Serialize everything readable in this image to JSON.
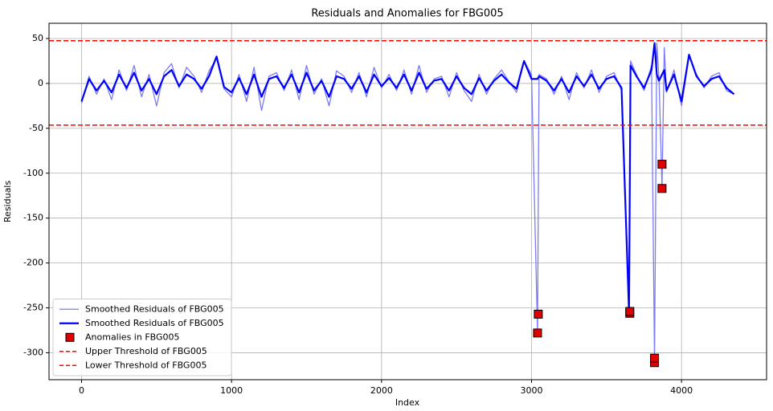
{
  "chart_data": {
    "type": "line",
    "title": "Residuals and Anomalies for FBG005",
    "x_label": "Index",
    "y_label": "Residuals",
    "x": [
      0,
      50,
      100,
      150,
      200,
      250,
      300,
      350,
      400,
      450,
      500,
      550,
      600,
      650,
      700,
      750,
      800,
      850,
      900,
      950,
      1000,
      1050,
      1100,
      1150,
      1200,
      1250,
      1300,
      1350,
      1400,
      1450,
      1500,
      1550,
      1600,
      1650,
      1700,
      1750,
      1800,
      1850,
      1900,
      1950,
      2000,
      2050,
      2100,
      2150,
      2200,
      2250,
      2300,
      2350,
      2400,
      2450,
      2500,
      2550,
      2600,
      2650,
      2700,
      2750,
      2800,
      2850,
      2900,
      2950,
      3000,
      3040,
      3050,
      3100,
      3150,
      3200,
      3250,
      3300,
      3350,
      3400,
      3450,
      3500,
      3550,
      3600,
      3650,
      3660,
      3700,
      3750,
      3800,
      3820,
      3835,
      3850,
      3870,
      3885,
      3900,
      3950,
      4000,
      4050,
      4100,
      4150,
      4200,
      4250,
      4300,
      4350
    ],
    "series": [
      {
        "name": "Smoothed Residuals of FBG005",
        "color": "#7b7bf5",
        "width": 1.3,
        "values": [
          -22,
          8,
          -12,
          5,
          -18,
          15,
          -8,
          20,
          -15,
          10,
          -25,
          12,
          22,
          -5,
          18,
          8,
          -10,
          14,
          28,
          -6,
          -15,
          10,
          -20,
          18,
          -30,
          8,
          12,
          -8,
          15,
          -18,
          20,
          -12,
          5,
          -25,
          14,
          8,
          -10,
          12,
          -15,
          18,
          -5,
          10,
          -8,
          15,
          -12,
          20,
          -10,
          5,
          8,
          -15,
          12,
          -8,
          -20,
          10,
          -12,
          5,
          15,
          2,
          -10,
          25,
          10,
          -278,
          10,
          5,
          -12,
          8,
          -18,
          12,
          -5,
          15,
          -10,
          8,
          12,
          -8,
          -256,
          25,
          10,
          -8,
          20,
          -311,
          45,
          5,
          -117,
          40,
          -10,
          15,
          -25,
          30,
          10,
          -5,
          8,
          12,
          -8,
          -12
        ]
      },
      {
        "name": "Smoothed Residuals of FBG005",
        "color": "#0000ff",
        "width": 2.2,
        "values": [
          -20,
          5,
          -8,
          3,
          -10,
          10,
          -5,
          12,
          -8,
          5,
          -12,
          8,
          15,
          -3,
          10,
          5,
          -6,
          8,
          30,
          -4,
          -10,
          6,
          -12,
          10,
          -15,
          5,
          8,
          -5,
          10,
          -10,
          12,
          -8,
          3,
          -15,
          8,
          5,
          -6,
          8,
          -10,
          10,
          -3,
          6,
          -5,
          10,
          -8,
          12,
          -6,
          3,
          5,
          -8,
          8,
          -5,
          -12,
          6,
          -8,
          3,
          10,
          1,
          -6,
          25,
          5,
          5,
          8,
          3,
          -8,
          5,
          -10,
          8,
          -3,
          10,
          -6,
          5,
          8,
          -5,
          -256,
          20,
          8,
          -5,
          15,
          45,
          10,
          3,
          10,
          15,
          -8,
          10,
          -20,
          32,
          8,
          -3,
          5,
          8,
          -5,
          -12
        ]
      }
    ],
    "anomalies": {
      "name": "Anomalies in FBG005",
      "color": "#e00000",
      "edge": "#000000",
      "x": [
        3040,
        3045,
        3655,
        3655,
        3820,
        3820,
        3870,
        3870
      ],
      "values": [
        -278,
        -257,
        -256,
        -254,
        -311,
        -306,
        -117,
        -90
      ]
    },
    "hlines": [
      {
        "name": "Upper Threshold of FBG005",
        "value": 47.5,
        "color": "#ff0000"
      },
      {
        "name": "Lower Threshold of FBG005",
        "value": -46.5,
        "color": "#ff0000"
      }
    ],
    "xlim": [
      -217,
      4567
    ],
    "ylim": [
      -330,
      67
    ],
    "xticks": [
      0,
      1000,
      2000,
      3000,
      4000
    ],
    "yticks": [
      -300,
      -250,
      -200,
      -150,
      -100,
      -50,
      0,
      50
    ],
    "grid": true,
    "legend": "lower left"
  }
}
